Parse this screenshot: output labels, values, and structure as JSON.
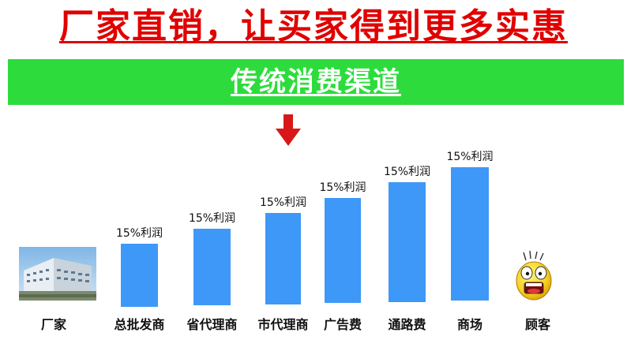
{
  "headline": "厂家直销，让买家得到更多实惠",
  "banner": {
    "label": "传统消费渠道"
  },
  "colors": {
    "headline": "#e00000",
    "banner": "#2ddc3c",
    "bar": "#3e98f7",
    "arrow": "#d81818"
  },
  "icons": {
    "factory": "factory-building-image",
    "consumer": "shocked-face-icon",
    "arrow": "arrow-down-icon"
  },
  "stages": {
    "factory": "厂家",
    "consumer": "顾客"
  },
  "chart_data": {
    "type": "bar",
    "categories": [
      "总批发商",
      "省代理商",
      "市代理商",
      "广告费",
      "通路费",
      "商场"
    ],
    "values": [
      1,
      2,
      3,
      4,
      5,
      6
    ],
    "data_labels": [
      "15%利润",
      "15%利润",
      "15%利润",
      "15%利润",
      "15%利润",
      "15%利润"
    ],
    "title": "",
    "xlabel": "",
    "ylabel": ""
  }
}
